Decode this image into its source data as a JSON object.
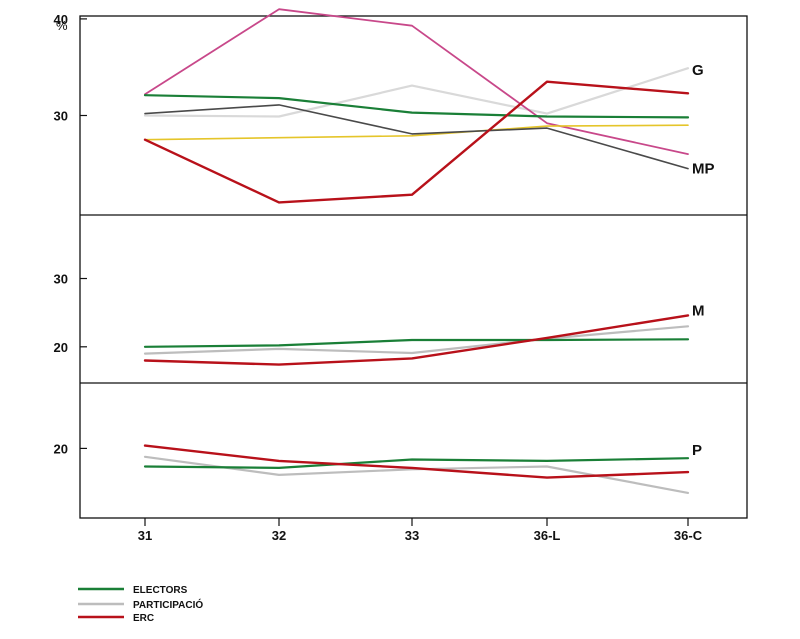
{
  "chart_data": {
    "type": "line",
    "unit_label": "%",
    "categories": [
      "31",
      "32",
      "33",
      "36-L",
      "36-C"
    ],
    "legend": [
      {
        "name": "ELECTORS",
        "color": "#1a7f37"
      },
      {
        "name": "PARTICIPACIÓ",
        "color": "#bdbdbd"
      },
      {
        "name": "ERC",
        "color": "#b8111a"
      }
    ],
    "panels": [
      {
        "label": "",
        "ylim": [
          19.7,
          40.3
        ],
        "yticks": [
          30,
          40
        ],
        "series": [
          {
            "color": "#d9d9d9",
            "width": 2.2,
            "values": [
              30.0,
              29.9,
              33.1,
              30.2,
              34.9
            ]
          },
          {
            "color": "#c8488a",
            "width": 1.8,
            "values": [
              32.2,
              41.0,
              39.3,
              29.2,
              26.0
            ]
          },
          {
            "color": "#e5c52a",
            "width": 1.6,
            "values": [
              27.5,
              27.7,
              27.9,
              28.9,
              29.0
            ]
          },
          {
            "color": "#4a4a4a",
            "width": 1.6,
            "values": [
              30.2,
              31.1,
              28.1,
              28.7,
              24.5
            ]
          },
          {
            "color": "#1a7f37",
            "width": 2.2,
            "values": [
              32.1,
              31.8,
              30.3,
              29.9,
              29.8
            ]
          },
          {
            "color": "#b8111a",
            "width": 2.4,
            "values": [
              27.5,
              21.0,
              21.8,
              33.5,
              32.3
            ]
          }
        ],
        "end_labels": [
          {
            "text": "G",
            "value": 34.7
          },
          {
            "text": "MP",
            "value": 24.5
          }
        ]
      },
      {
        "label": "M",
        "ylim": [
          14.7,
          39.3
        ],
        "yticks": [
          20,
          30
        ],
        "series": [
          {
            "color": "#bdbdbd",
            "width": 2.2,
            "values": [
              19.0,
              19.7,
              19.1,
              21.2,
              23.0
            ]
          },
          {
            "color": "#1a7f37",
            "width": 2.2,
            "values": [
              20.0,
              20.2,
              21.0,
              21.0,
              21.1
            ]
          },
          {
            "color": "#b8111a",
            "width": 2.4,
            "values": [
              18.0,
              17.4,
              18.3,
              21.3,
              24.6
            ]
          }
        ],
        "end_labels": [
          {
            "text": "M",
            "value": 25.3
          }
        ]
      },
      {
        "label": "P",
        "ylim": [
          15.0,
          24.7
        ],
        "yticks": [
          20
        ],
        "series": [
          {
            "color": "#bdbdbd",
            "width": 2.2,
            "values": [
              19.4,
              18.1,
              18.5,
              18.7,
              16.8
            ]
          },
          {
            "color": "#1a7f37",
            "width": 2.2,
            "values": [
              18.7,
              18.6,
              19.2,
              19.1,
              19.3
            ]
          },
          {
            "color": "#b8111a",
            "width": 2.4,
            "values": [
              20.2,
              19.1,
              18.6,
              17.9,
              18.3
            ]
          }
        ],
        "end_labels": [
          {
            "text": "P",
            "value": 19.9
          }
        ]
      }
    ]
  }
}
